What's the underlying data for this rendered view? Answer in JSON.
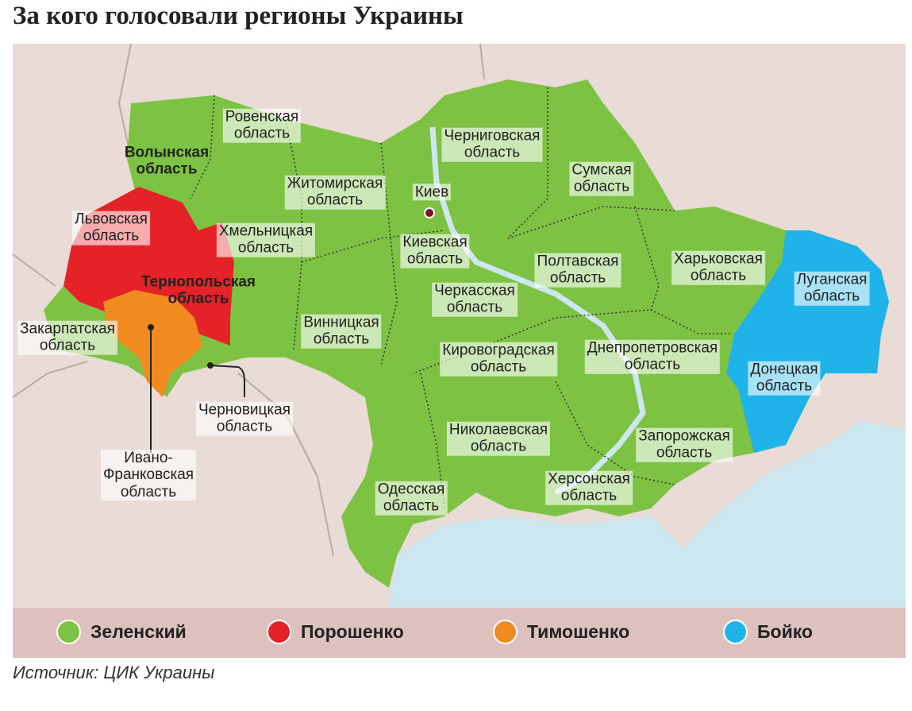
{
  "title": "За кого голосовали регионы Украины",
  "city": "Киев",
  "regions": [
    {
      "label": "Ровенская область",
      "winner": 0
    },
    {
      "label": "Волынская область",
      "winner": 0,
      "bold": true
    },
    {
      "label": "Житомирская область",
      "winner": 0
    },
    {
      "label": "Черниговская область",
      "winner": 0
    },
    {
      "label": "Сумская область",
      "winner": 0
    },
    {
      "label": "Львовская область",
      "winner": 1
    },
    {
      "label": "Хмельницкая область",
      "winner": 0
    },
    {
      "label": "Киевская область",
      "winner": 0
    },
    {
      "label": "Полтавская область",
      "winner": 0
    },
    {
      "label": "Харьковская область",
      "winner": 0
    },
    {
      "label": "Луганская область",
      "winner": 3
    },
    {
      "label": "Тернопольская область",
      "winner": 1,
      "bold": true
    },
    {
      "label": "Черкасская область",
      "winner": 0
    },
    {
      "label": "Закарпатская область",
      "winner": 0
    },
    {
      "label": "Винницкая область",
      "winner": 0
    },
    {
      "label": "Кировоградская область",
      "winner": 0
    },
    {
      "label": "Днепропетровская область",
      "winner": 0
    },
    {
      "label": "Донецкая область",
      "winner": 3
    },
    {
      "label": "Черновицкая область",
      "winner": 0
    },
    {
      "label": "Николаевская область",
      "winner": 0
    },
    {
      "label": "Запорожская область",
      "winner": 0
    },
    {
      "label": "Ивано-Франковская область",
      "winner": 2
    },
    {
      "label": "Одесская область",
      "winner": 0
    },
    {
      "label": "Херсонская область",
      "winner": 0
    }
  ],
  "legend": [
    {
      "name": "Зеленский",
      "color": "#7dc243"
    },
    {
      "name": "Порошенко",
      "color": "#e62229"
    },
    {
      "name": "Тимошенко",
      "color": "#f18a21"
    },
    {
      "name": "Бойко",
      "color": "#1fb3ea"
    }
  ],
  "source": "Источник: ЦИК Украины"
}
